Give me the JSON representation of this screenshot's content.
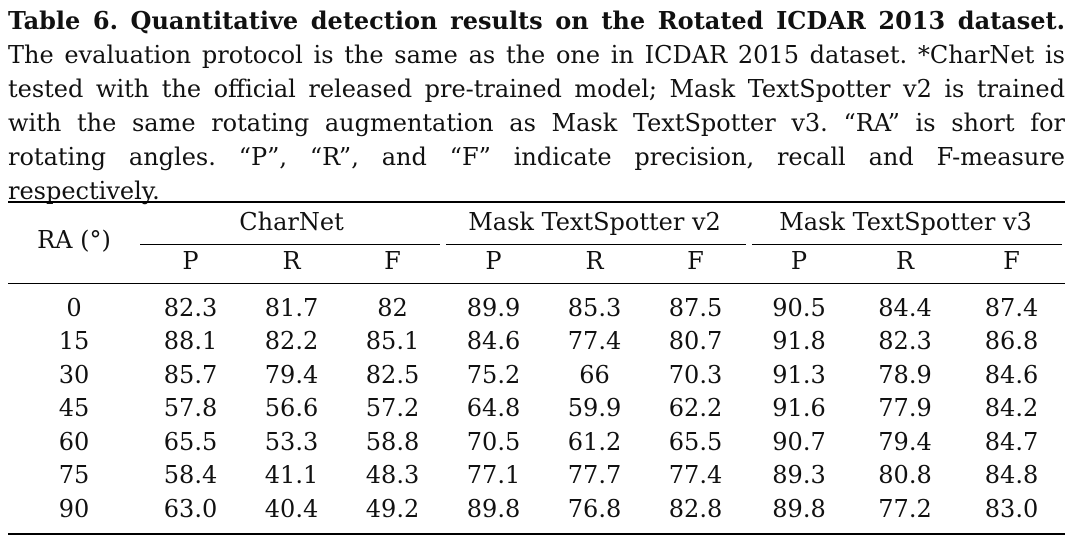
{
  "caption": {
    "label": "Table 6. Quantitative detection results on the Rotated ICDAR 2013 dataset.",
    "text": "The evaluation protocol is the same as the one in ICDAR 2015 dataset. *CharNet is tested with the official released pre-trained model; Mask TextSpotter v2 is trained with the same rotating augmentation as Mask TextSpotter v3. “RA” is short for rotating angles. “P”, “R”, and “F” indicate precision, recall and F-measure respectively."
  },
  "table": {
    "row_header": "RA (°)",
    "groups": [
      "CharNet",
      "Mask TextSpotter v2",
      "Mask TextSpotter v3"
    ],
    "subheaders": [
      "P",
      "R",
      "F",
      "P",
      "R",
      "F",
      "P",
      "R",
      "F"
    ],
    "rows": [
      [
        "0",
        "82.3",
        "81.7",
        "82",
        "89.9",
        "85.3",
        "87.5",
        "90.5",
        "84.4",
        "87.4"
      ],
      [
        "15",
        "88.1",
        "82.2",
        "85.1",
        "84.6",
        "77.4",
        "80.7",
        "91.8",
        "82.3",
        "86.8"
      ],
      [
        "30",
        "85.7",
        "79.4",
        "82.5",
        "75.2",
        "66",
        "70.3",
        "91.3",
        "78.9",
        "84.6"
      ],
      [
        "45",
        "57.8",
        "56.6",
        "57.2",
        "64.8",
        "59.9",
        "62.2",
        "91.6",
        "77.9",
        "84.2"
      ],
      [
        "60",
        "65.5",
        "53.3",
        "58.8",
        "70.5",
        "61.2",
        "65.5",
        "90.7",
        "79.4",
        "84.7"
      ],
      [
        "75",
        "58.4",
        "41.1",
        "48.3",
        "77.1",
        "77.7",
        "77.4",
        "89.3",
        "80.8",
        "84.8"
      ],
      [
        "90",
        "63.0",
        "40.4",
        "49.2",
        "89.8",
        "76.8",
        "82.8",
        "89.8",
        "77.2",
        "83.0"
      ]
    ]
  }
}
